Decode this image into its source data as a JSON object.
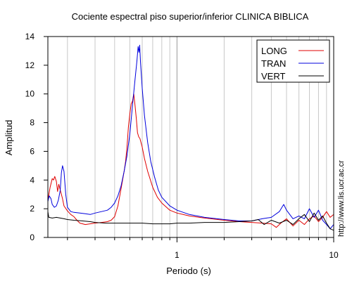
{
  "chart_data": {
    "type": "line",
    "title": "Cociente espectral piso superior/inferior  CLINICA BIBLICA",
    "xlabel": "Periodo (s)",
    "ylabel": "Amplitud",
    "x_scale": "log",
    "xlim": [
      0.15,
      10
    ],
    "ylim": [
      0,
      14
    ],
    "x_tick_labels": [
      {
        "value": 1,
        "label": "1"
      },
      {
        "value": 10,
        "label": "10"
      }
    ],
    "x_minor_ticks": [
      0.2,
      0.3,
      0.4,
      0.5,
      0.6,
      0.7,
      0.8,
      0.9,
      2,
      3,
      4,
      5,
      6,
      7,
      8,
      9
    ],
    "y_ticks": [
      0,
      2,
      4,
      6,
      8,
      10,
      12,
      14
    ],
    "grid": "vertical at x ticks",
    "legend_position": "top-right",
    "watermark": "http://www.lis.ucr.ac.cr",
    "series": [
      {
        "name": "LONG",
        "color": "#e00000",
        "points": [
          [
            0.15,
            2.6
          ],
          [
            0.155,
            3.5
          ],
          [
            0.16,
            4.1
          ],
          [
            0.163,
            4.0
          ],
          [
            0.166,
            4.25
          ],
          [
            0.17,
            3.9
          ],
          [
            0.173,
            3.2
          ],
          [
            0.176,
            3.7
          ],
          [
            0.18,
            3.3
          ],
          [
            0.186,
            2.7
          ],
          [
            0.19,
            2.2
          ],
          [
            0.2,
            1.85
          ],
          [
            0.21,
            1.6
          ],
          [
            0.22,
            1.45
          ],
          [
            0.23,
            1.2
          ],
          [
            0.24,
            1.0
          ],
          [
            0.26,
            0.9
          ],
          [
            0.28,
            0.95
          ],
          [
            0.3,
            1.0
          ],
          [
            0.33,
            1.05
          ],
          [
            0.36,
            1.1
          ],
          [
            0.38,
            1.2
          ],
          [
            0.4,
            1.45
          ],
          [
            0.42,
            2.2
          ],
          [
            0.44,
            3.4
          ],
          [
            0.46,
            4.6
          ],
          [
            0.47,
            5.3
          ],
          [
            0.48,
            6.3
          ],
          [
            0.49,
            7.7
          ],
          [
            0.5,
            8.6
          ],
          [
            0.51,
            9.3
          ],
          [
            0.52,
            9.5
          ],
          [
            0.53,
            10.0
          ],
          [
            0.54,
            9.2
          ],
          [
            0.55,
            8.3
          ],
          [
            0.56,
            7.3
          ],
          [
            0.57,
            7.0
          ],
          [
            0.58,
            6.9
          ],
          [
            0.6,
            6.3
          ],
          [
            0.62,
            5.5
          ],
          [
            0.65,
            4.6
          ],
          [
            0.7,
            3.5
          ],
          [
            0.75,
            2.8
          ],
          [
            0.8,
            2.4
          ],
          [
            0.9,
            1.9
          ],
          [
            1.0,
            1.7
          ],
          [
            1.2,
            1.5
          ],
          [
            1.5,
            1.35
          ],
          [
            2.0,
            1.2
          ],
          [
            2.5,
            1.1
          ],
          [
            3.0,
            1.05
          ],
          [
            3.5,
            1.0
          ],
          [
            4.0,
            0.95
          ],
          [
            4.3,
            0.7
          ],
          [
            4.6,
            1.0
          ],
          [
            5.0,
            1.3
          ],
          [
            5.5,
            0.8
          ],
          [
            6.0,
            1.2
          ],
          [
            6.5,
            0.9
          ],
          [
            7.0,
            1.3
          ],
          [
            7.5,
            1.5
          ],
          [
            8.0,
            1.1
          ],
          [
            8.5,
            1.4
          ],
          [
            9.0,
            1.8
          ],
          [
            9.5,
            1.4
          ],
          [
            10.0,
            1.6
          ]
        ]
      },
      {
        "name": "TRAN",
        "color": "#0000dd",
        "points": [
          [
            0.15,
            2.5
          ],
          [
            0.153,
            2.9
          ],
          [
            0.157,
            2.7
          ],
          [
            0.16,
            2.3
          ],
          [
            0.165,
            2.1
          ],
          [
            0.17,
            2.2
          ],
          [
            0.175,
            2.6
          ],
          [
            0.18,
            3.3
          ],
          [
            0.183,
            4.5
          ],
          [
            0.186,
            5.0
          ],
          [
            0.19,
            4.6
          ],
          [
            0.195,
            3.0
          ],
          [
            0.2,
            2.1
          ],
          [
            0.21,
            1.8
          ],
          [
            0.22,
            1.75
          ],
          [
            0.24,
            1.7
          ],
          [
            0.26,
            1.65
          ],
          [
            0.28,
            1.6
          ],
          [
            0.3,
            1.7
          ],
          [
            0.33,
            1.8
          ],
          [
            0.36,
            1.9
          ],
          [
            0.38,
            2.1
          ],
          [
            0.4,
            2.4
          ],
          [
            0.42,
            2.9
          ],
          [
            0.44,
            3.6
          ],
          [
            0.46,
            4.6
          ],
          [
            0.48,
            5.7
          ],
          [
            0.5,
            7.2
          ],
          [
            0.52,
            9.2
          ],
          [
            0.54,
            11.0
          ],
          [
            0.555,
            12.3
          ],
          [
            0.565,
            13.3
          ],
          [
            0.572,
            12.9
          ],
          [
            0.578,
            13.4
          ],
          [
            0.585,
            12.2
          ],
          [
            0.6,
            10.4
          ],
          [
            0.62,
            8.5
          ],
          [
            0.65,
            6.6
          ],
          [
            0.68,
            5.3
          ],
          [
            0.72,
            4.2
          ],
          [
            0.76,
            3.3
          ],
          [
            0.8,
            2.8
          ],
          [
            0.9,
            2.2
          ],
          [
            1.0,
            1.9
          ],
          [
            1.2,
            1.6
          ],
          [
            1.5,
            1.4
          ],
          [
            2.0,
            1.25
          ],
          [
            2.5,
            1.15
          ],
          [
            3.0,
            1.15
          ],
          [
            3.5,
            1.3
          ],
          [
            4.0,
            1.4
          ],
          [
            4.5,
            1.8
          ],
          [
            4.8,
            2.3
          ],
          [
            5.0,
            1.9
          ],
          [
            5.5,
            1.3
          ],
          [
            6.0,
            1.5
          ],
          [
            6.5,
            1.3
          ],
          [
            7.0,
            2.0
          ],
          [
            7.5,
            1.4
          ],
          [
            8.0,
            1.9
          ],
          [
            8.5,
            1.2
          ],
          [
            9.0,
            0.9
          ],
          [
            9.5,
            0.6
          ],
          [
            10.0,
            0.9
          ]
        ]
      },
      {
        "name": "VERT",
        "color": "#000000",
        "points": [
          [
            0.15,
            1.8
          ],
          [
            0.152,
            1.4
          ],
          [
            0.16,
            1.35
          ],
          [
            0.17,
            1.4
          ],
          [
            0.18,
            1.35
          ],
          [
            0.19,
            1.3
          ],
          [
            0.2,
            1.25
          ],
          [
            0.22,
            1.2
          ],
          [
            0.25,
            1.15
          ],
          [
            0.28,
            1.1
          ],
          [
            0.3,
            1.05
          ],
          [
            0.35,
            1.0
          ],
          [
            0.4,
            1.0
          ],
          [
            0.5,
            1.0
          ],
          [
            0.6,
            1.0
          ],
          [
            0.7,
            0.95
          ],
          [
            0.8,
            0.95
          ],
          [
            0.9,
            0.95
          ],
          [
            1.0,
            1.0
          ],
          [
            1.2,
            1.0
          ],
          [
            1.5,
            1.05
          ],
          [
            2.0,
            1.05
          ],
          [
            2.5,
            1.1
          ],
          [
            3.0,
            1.15
          ],
          [
            3.3,
            1.25
          ],
          [
            3.6,
            0.9
          ],
          [
            4.0,
            1.2
          ],
          [
            4.5,
            1.0
          ],
          [
            5.0,
            1.2
          ],
          [
            5.5,
            0.9
          ],
          [
            6.0,
            1.3
          ],
          [
            6.5,
            1.6
          ],
          [
            7.0,
            1.1
          ],
          [
            7.5,
            1.7
          ],
          [
            8.0,
            1.2
          ],
          [
            8.5,
            1.5
          ],
          [
            9.0,
            1.0
          ],
          [
            9.5,
            0.6
          ],
          [
            10.0,
            0.5
          ]
        ]
      }
    ]
  }
}
